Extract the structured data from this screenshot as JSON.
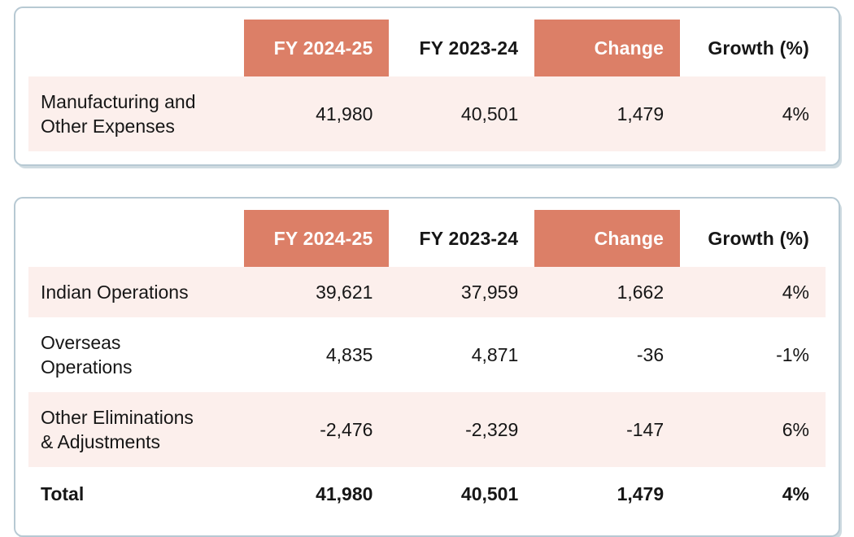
{
  "colors": {
    "accent": "#DC7F67",
    "row_highlight": "#FCEFEC",
    "card_border": "#B7C9D3",
    "text": "#161616",
    "accent_text": "#FFFFFF"
  },
  "expense_table": {
    "columns": [
      "FY 2024-25",
      "FY 2023-24",
      "Change",
      "Growth (%)"
    ],
    "rows": [
      {
        "label": "Manufacturing and\nOther Expenses",
        "values": [
          "41,980",
          "40,501",
          "1,479",
          "4%"
        ]
      }
    ]
  },
  "operations_table": {
    "columns": [
      "FY 2024-25",
      "FY 2023-24",
      "Change",
      "Growth (%)"
    ],
    "rows": [
      {
        "label": "Indian Operations",
        "values": [
          "39,621",
          "37,959",
          "1,662",
          "4%"
        ]
      },
      {
        "label": "Overseas\nOperations",
        "values": [
          "4,835",
          "4,871",
          "-36",
          "-1%"
        ]
      },
      {
        "label": "Other Eliminations\n& Adjustments",
        "values": [
          "-2,476",
          "-2,329",
          "-147",
          "6%"
        ]
      },
      {
        "label": "Total",
        "values": [
          "41,980",
          "40,501",
          "1,479",
          "4%"
        ]
      }
    ]
  },
  "chart_data": [
    {
      "type": "table",
      "columns": [
        "",
        "FY 2024-25",
        "FY 2023-24",
        "Change",
        "Growth (%)"
      ],
      "rows": [
        [
          "Manufacturing and Other Expenses",
          41980,
          40501,
          1479,
          "4%"
        ]
      ]
    },
    {
      "type": "table",
      "columns": [
        "",
        "FY 2024-25",
        "FY 2023-24",
        "Change",
        "Growth (%)"
      ],
      "rows": [
        [
          "Indian Operations",
          39621,
          37959,
          1662,
          "4%"
        ],
        [
          "Overseas Operations",
          4835,
          4871,
          -36,
          "-1%"
        ],
        [
          "Other Eliminations & Adjustments",
          -2476,
          -2329,
          -147,
          "6%"
        ],
        [
          "Total",
          41980,
          40501,
          1479,
          "4%"
        ]
      ]
    }
  ]
}
